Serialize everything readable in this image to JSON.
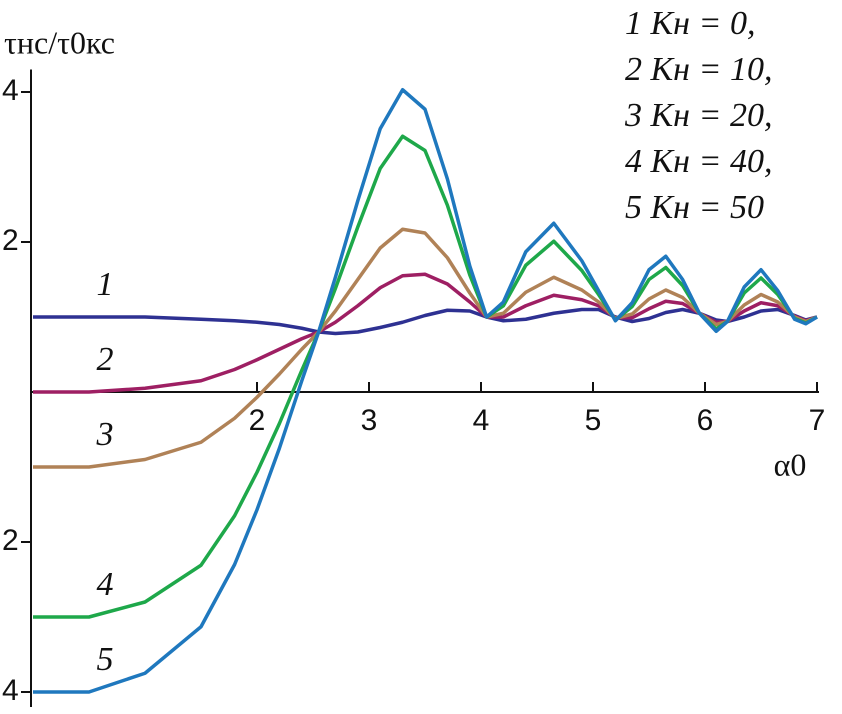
{
  "chart_data": {
    "type": "line",
    "y_label": "τнс/τ0кс",
    "x_label": "α0",
    "annotations": [
      "1 Kн = 0,",
      "2 Kн = 10,",
      "3 Kн = 20,",
      "4 Kн = 40,",
      "5 Kн = 50"
    ],
    "x": [
      0,
      0.5,
      1,
      1.5,
      1.8,
      2,
      2.2,
      2.4,
      2.55,
      2.7,
      2.9,
      3.1,
      3.3,
      3.5,
      3.7,
      3.9,
      4.05,
      4.2,
      4.4,
      4.65,
      4.9,
      5.05,
      5.2,
      5.35,
      5.5,
      5.65,
      5.8,
      5.95,
      6.1,
      6.2,
      6.35,
      6.5,
      6.65,
      6.8,
      6.9,
      7
    ],
    "series": [
      {
        "name": "1",
        "color": "#2e3192",
        "values": [
          1.0,
          1.0,
          1.0,
          0.97,
          0.95,
          0.93,
          0.9,
          0.85,
          0.8,
          0.78,
          0.8,
          0.86,
          0.93,
          1.02,
          1.09,
          1.08,
          1.0,
          0.95,
          0.97,
          1.05,
          1.1,
          1.1,
          1.0,
          0.94,
          0.98,
          1.06,
          1.1,
          1.05,
          0.96,
          0.94,
          1.0,
          1.08,
          1.1,
          1.02,
          0.96,
          1.0
        ]
      },
      {
        "name": "2",
        "color": "#9e1f63",
        "values": [
          0,
          0,
          0.05,
          0.15,
          0.3,
          0.43,
          0.57,
          0.71,
          0.8,
          0.93,
          1.15,
          1.39,
          1.55,
          1.57,
          1.44,
          1.2,
          1.0,
          1.0,
          1.15,
          1.29,
          1.23,
          1.15,
          0.99,
          0.99,
          1.11,
          1.21,
          1.18,
          1.05,
          0.93,
          0.94,
          1.08,
          1.19,
          1.15,
          1.01,
          0.95,
          1.0
        ]
      },
      {
        "name": "3",
        "color": "#b08257",
        "values": [
          -1,
          -1,
          -0.9,
          -0.67,
          -0.35,
          -0.07,
          0.24,
          0.57,
          0.8,
          1.08,
          1.5,
          1.92,
          2.17,
          2.12,
          1.79,
          1.32,
          1.0,
          1.05,
          1.33,
          1.53,
          1.36,
          1.2,
          0.98,
          1.04,
          1.24,
          1.36,
          1.26,
          1.05,
          0.9,
          0.94,
          1.16,
          1.3,
          1.2,
          1.0,
          0.94,
          1.0
        ]
      },
      {
        "name": "4",
        "color": "#1ea84a",
        "values": [
          -3,
          -3,
          -2.8,
          -2.31,
          -1.65,
          -1.07,
          -0.42,
          0.29,
          0.8,
          1.38,
          2.2,
          2.98,
          3.41,
          3.22,
          2.49,
          1.56,
          1.0,
          1.15,
          1.69,
          2.01,
          1.62,
          1.3,
          0.96,
          1.14,
          1.5,
          1.66,
          1.42,
          1.05,
          0.84,
          0.94,
          1.32,
          1.52,
          1.3,
          0.98,
          0.92,
          1.0
        ]
      },
      {
        "name": "5",
        "color": "#1f78be",
        "values": [
          -4,
          -4,
          -3.75,
          -3.13,
          -2.3,
          -1.57,
          -0.75,
          0.15,
          0.8,
          1.53,
          2.55,
          3.51,
          4.03,
          3.77,
          2.84,
          1.68,
          1.0,
          1.2,
          1.87,
          2.25,
          1.75,
          1.35,
          0.95,
          1.19,
          1.63,
          1.81,
          1.5,
          1.05,
          0.81,
          0.94,
          1.4,
          1.63,
          1.35,
          0.97,
          0.91,
          1.0
        ]
      }
    ],
    "xlim": [
      0,
      7
    ],
    "xticks": [
      2,
      3,
      4,
      5,
      6,
      7
    ],
    "ylim": [
      -4.2,
      4.3
    ],
    "yticks": [
      {
        "value": -4,
        "label": "4"
      },
      {
        "value": -2,
        "label": "2"
      },
      2,
      4
    ]
  }
}
